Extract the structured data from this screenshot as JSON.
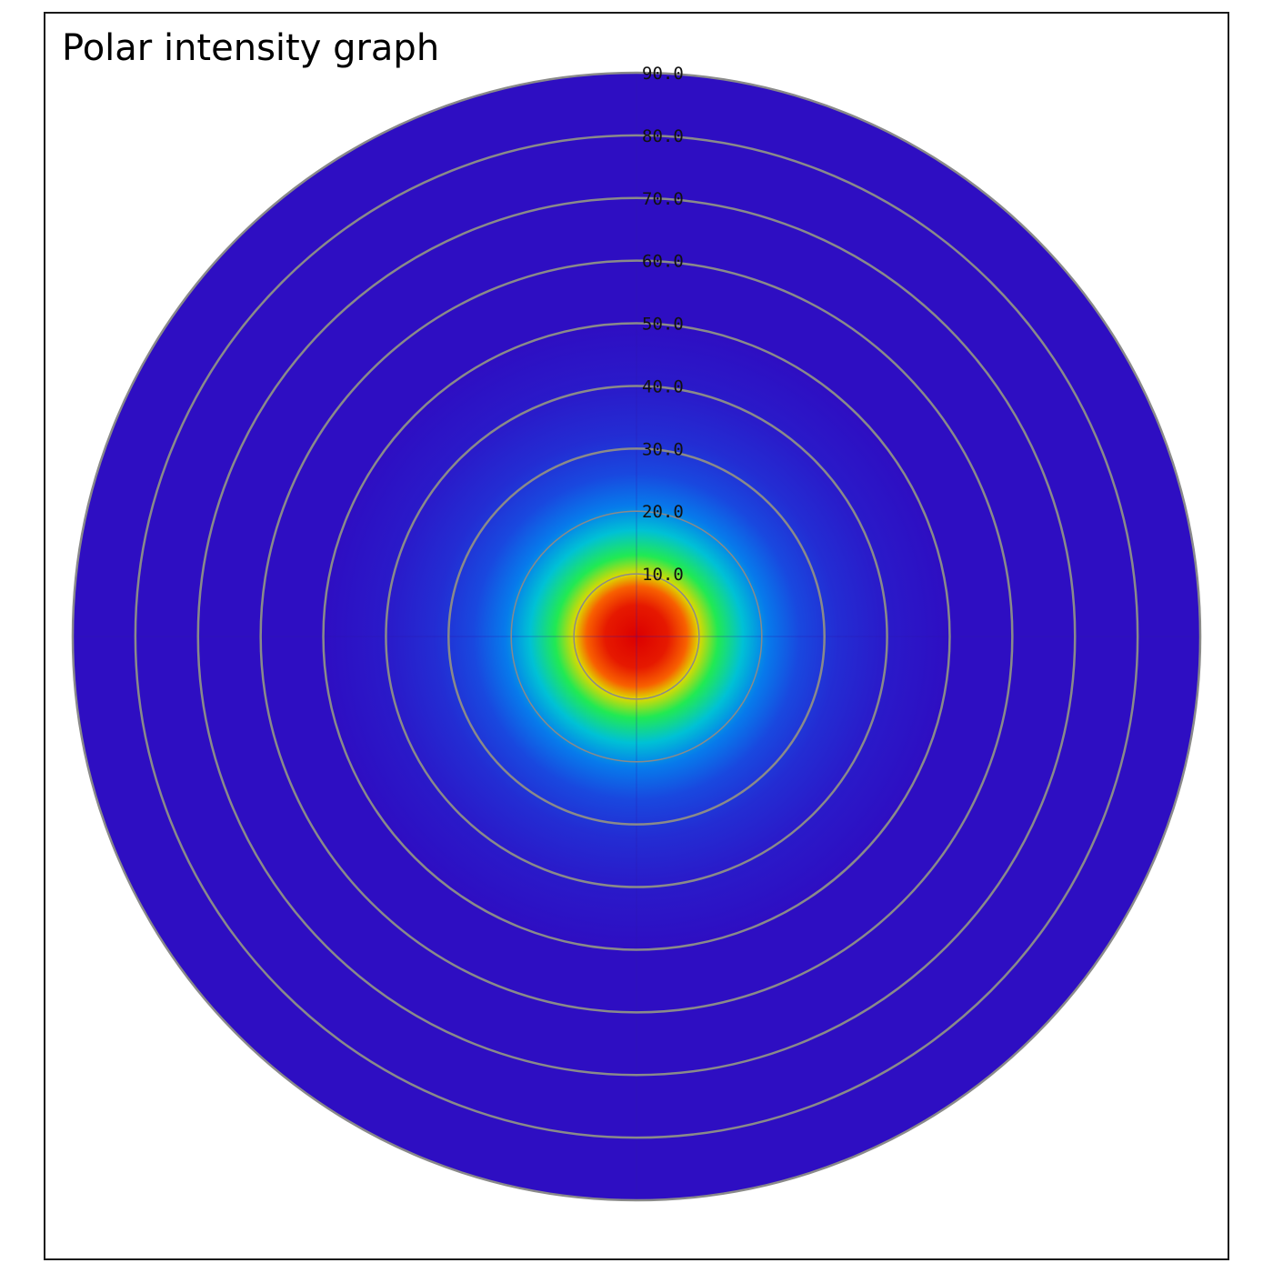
{
  "chart_data": {
    "type": "heatmap",
    "subtype": "polar",
    "title": "Polar intensity graph",
    "radial_axis": {
      "min": 0,
      "max": 90,
      "ticks": [
        "10.0",
        "20.0",
        "30.0",
        "40.0",
        "50.0",
        "60.0",
        "70.0",
        "80.0",
        "90.0"
      ],
      "tick_values": [
        10,
        20,
        30,
        40,
        50,
        60,
        70,
        80,
        90
      ]
    },
    "grid": true,
    "colormap": "jet",
    "intensity_profile": {
      "description_points": [
        {
          "r": 0,
          "intensity": 1.0
        },
        {
          "r": 5,
          "intensity": 0.95
        },
        {
          "r": 8,
          "intensity": 0.85
        },
        {
          "r": 10,
          "intensity": 0.7
        },
        {
          "r": 13,
          "intensity": 0.5
        },
        {
          "r": 17,
          "intensity": 0.35
        },
        {
          "r": 21,
          "intensity": 0.22
        },
        {
          "r": 26,
          "intensity": 0.14
        },
        {
          "r": 32,
          "intensity": 0.08
        },
        {
          "r": 40,
          "intensity": 0.03
        },
        {
          "r": 50,
          "intensity": 0.0
        },
        {
          "r": 90,
          "intensity": 0.0
        }
      ]
    },
    "colors": {
      "background_low": "#2e0ec2",
      "ring": "#8a8a8a",
      "crosshair": "#2a18a8"
    }
  }
}
